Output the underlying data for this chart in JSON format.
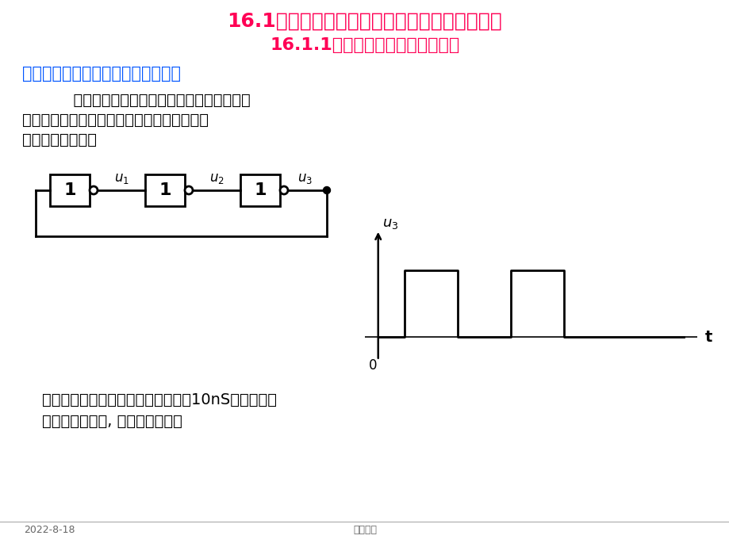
{
  "title1": "16.1由门电路构成的多谐振荡器和单稳态触发器",
  "title2": "16.1.1由门电路构成的多谐振荡器",
  "subtitle": "一、由奇数个非门组成的多谐振荡器",
  "body_line1": "      利用门电路的传输延迟时间，将奇数个非门",
  "body_line2": "首尾相接，就可以构成一个简单的多谐振荡器",
  "body_line3": "（环行振荡器）：",
  "footer_line1": "    缺点：因门电路传输延迟时间很短（10nS左右），所",
  "footer_line2": "    以振荡频率太高, 并且不可调整。",
  "date_text": "2022-8-18",
  "course_text": "电工技术",
  "title1_color": "#FF0055",
  "title2_color": "#FF0055",
  "subtitle_color": "#0055FF",
  "body_color": "#000000",
  "bg_color": "#FFFFFF"
}
